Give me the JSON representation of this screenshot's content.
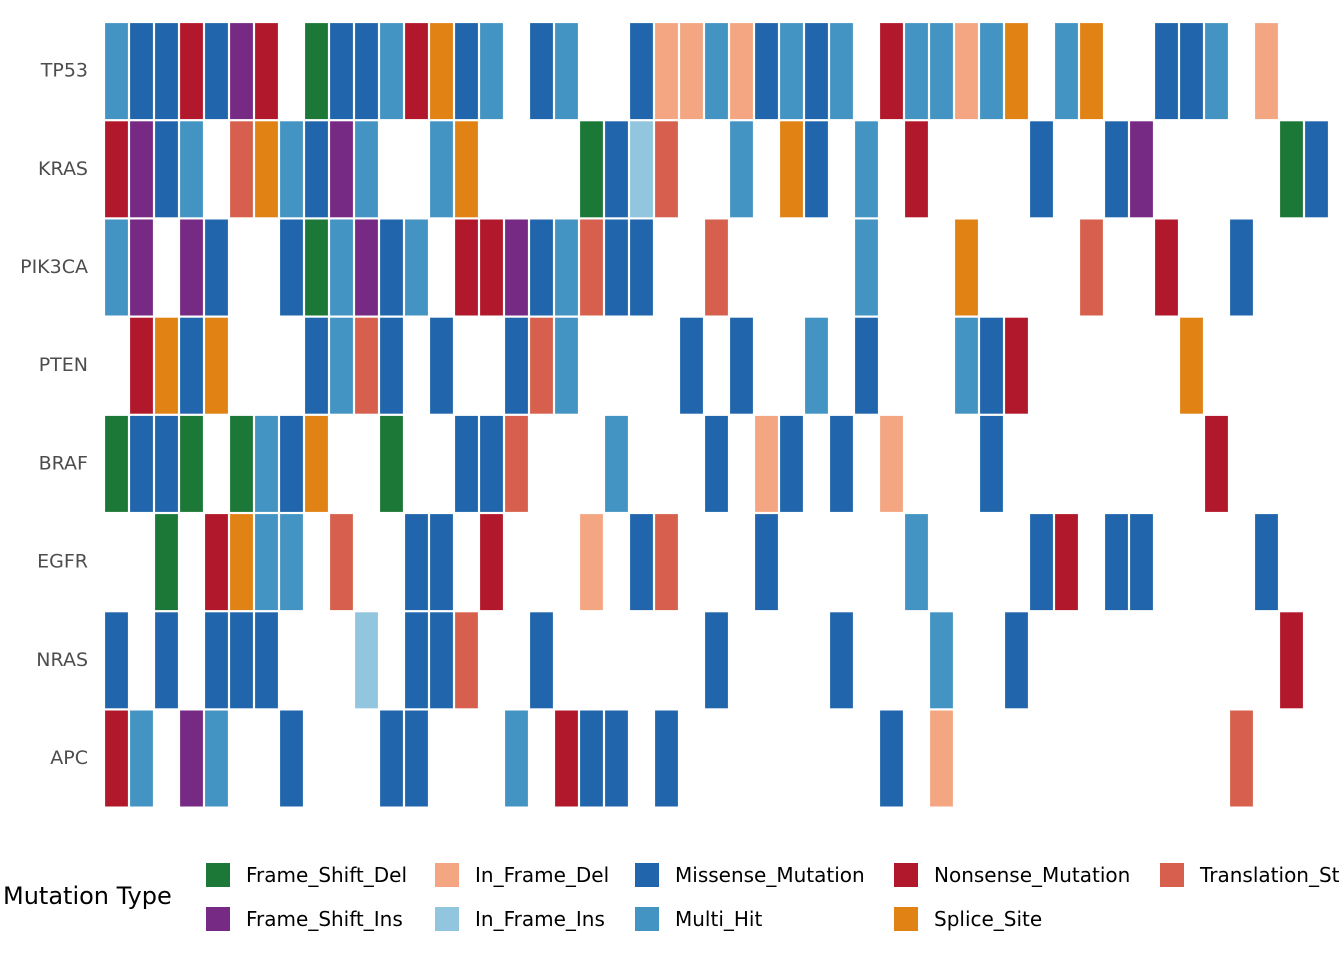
{
  "chart_data": {
    "type": "heatmap",
    "title": "",
    "xlabel": "",
    "ylabel": "",
    "genes": [
      "TP53",
      "KRAS",
      "PIK3CA",
      "PTEN",
      "BRAF",
      "EGFR",
      "NRAS",
      "APC"
    ],
    "n_samples": 49,
    "colors": {
      "Frame_Shift_Del": "#1b7837",
      "Frame_Shift_Ins": "#762a83",
      "In_Frame_Del": "#f4a582",
      "In_Frame_Ins": "#92c5de",
      "Missense_Mutation": "#2166ac",
      "Multi_Hit": "#4393c3",
      "Nonsense_Mutation": "#b2182b",
      "Splice_Site": "#e08214",
      "Translation_Start_Site": "#d6604d"
    },
    "matrix": {
      "TP53": [
        "Multi_Hit",
        "Missense_Mutation",
        "Missense_Mutation",
        "Nonsense_Mutation",
        "Missense_Mutation",
        "Frame_Shift_Ins",
        "Nonsense_Mutation",
        "",
        "Frame_Shift_Del",
        "Missense_Mutation",
        "Missense_Mutation",
        "Multi_Hit",
        "Nonsense_Mutation",
        "Splice_Site",
        "Missense_Mutation",
        "Multi_Hit",
        "",
        "Missense_Mutation",
        "Multi_Hit",
        "",
        "",
        "Missense_Mutation",
        "In_Frame_Del",
        "In_Frame_Del",
        "Multi_Hit",
        "In_Frame_Del",
        "Missense_Mutation",
        "Multi_Hit",
        "Missense_Mutation",
        "Multi_Hit",
        "",
        "Nonsense_Mutation",
        "Multi_Hit",
        "Multi_Hit",
        "In_Frame_Del",
        "Multi_Hit",
        "Splice_Site",
        "",
        "Multi_Hit",
        "Splice_Site",
        "",
        "",
        "Missense_Mutation",
        "Missense_Mutation",
        "Multi_Hit",
        "",
        "In_Frame_Del",
        "",
        ""
      ],
      "KRAS": [
        "Nonsense_Mutation",
        "Frame_Shift_Ins",
        "Missense_Mutation",
        "Multi_Hit",
        "",
        "Translation_Start_Site",
        "Splice_Site",
        "Multi_Hit",
        "Missense_Mutation",
        "Frame_Shift_Ins",
        "Multi_Hit",
        "",
        "",
        "Multi_Hit",
        "Splice_Site",
        "",
        "",
        "",
        "",
        "Frame_Shift_Del",
        "Missense_Mutation",
        "In_Frame_Ins",
        "Translation_Start_Site",
        "",
        "",
        "Multi_Hit",
        "",
        "Splice_Site",
        "Missense_Mutation",
        "",
        "Multi_Hit",
        "",
        "Nonsense_Mutation",
        "",
        "",
        "",
        "",
        "Missense_Mutation",
        "",
        "",
        "Missense_Mutation",
        "Frame_Shift_Ins",
        "",
        "",
        "",
        "",
        "",
        "Frame_Shift_Del",
        "Missense_Mutation"
      ],
      "PIK3CA": [
        "Multi_Hit",
        "Frame_Shift_Ins",
        "",
        "Frame_Shift_Ins",
        "Missense_Mutation",
        "",
        "",
        "Missense_Mutation",
        "Frame_Shift_Del",
        "Multi_Hit",
        "Frame_Shift_Ins",
        "Missense_Mutation",
        "Multi_Hit",
        "",
        "Nonsense_Mutation",
        "Nonsense_Mutation",
        "Frame_Shift_Ins",
        "Missense_Mutation",
        "Multi_Hit",
        "Translation_Start_Site",
        "Missense_Mutation",
        "Missense_Mutation",
        "",
        "",
        "Translation_Start_Site",
        "",
        "",
        "",
        "",
        "",
        "Multi_Hit",
        "",
        "",
        "",
        "Splice_Site",
        "",
        "",
        "",
        "",
        "Translation_Start_Site",
        "",
        "",
        "Nonsense_Mutation",
        "",
        "",
        "Missense_Mutation",
        "",
        "",
        ""
      ],
      "PTEN": [
        "",
        "Nonsense_Mutation",
        "Splice_Site",
        "Missense_Mutation",
        "Splice_Site",
        "",
        "",
        "",
        "Missense_Mutation",
        "Multi_Hit",
        "Translation_Start_Site",
        "Missense_Mutation",
        "",
        "Missense_Mutation",
        "",
        "",
        "Missense_Mutation",
        "Translation_Start_Site",
        "Multi_Hit",
        "",
        "",
        "",
        "",
        "Missense_Mutation",
        "",
        "Missense_Mutation",
        "",
        "",
        "Multi_Hit",
        "",
        "Missense_Mutation",
        "",
        "",
        "",
        "Multi_Hit",
        "Missense_Mutation",
        "Nonsense_Mutation",
        "",
        "",
        "",
        "",
        "",
        "",
        "Splice_Site",
        "",
        "",
        "",
        "",
        ""
      ],
      "BRAF": [
        "Frame_Shift_Del",
        "Missense_Mutation",
        "Missense_Mutation",
        "Frame_Shift_Del",
        "",
        "Frame_Shift_Del",
        "Multi_Hit",
        "Missense_Mutation",
        "Splice_Site",
        "",
        "",
        "Frame_Shift_Del",
        "",
        "",
        "Missense_Mutation",
        "Missense_Mutation",
        "Translation_Start_Site",
        "",
        "",
        "",
        "Multi_Hit",
        "",
        "",
        "",
        "Missense_Mutation",
        "",
        "In_Frame_Del",
        "Missense_Mutation",
        "",
        "Missense_Mutation",
        "",
        "In_Frame_Del",
        "",
        "",
        "",
        "Missense_Mutation",
        "",
        "",
        "",
        "",
        "",
        "",
        "",
        "",
        "Nonsense_Mutation",
        "",
        "",
        "",
        ""
      ],
      "EGFR": [
        "",
        "",
        "Frame_Shift_Del",
        "",
        "Nonsense_Mutation",
        "Splice_Site",
        "Multi_Hit",
        "Multi_Hit",
        "",
        "Translation_Start_Site",
        "",
        "",
        "Missense_Mutation",
        "Missense_Mutation",
        "",
        "Nonsense_Mutation",
        "",
        "",
        "",
        "In_Frame_Del",
        "",
        "Missense_Mutation",
        "Translation_Start_Site",
        "",
        "",
        "",
        "Missense_Mutation",
        "",
        "",
        "",
        "",
        "",
        "Multi_Hit",
        "",
        "",
        "",
        "",
        "Missense_Mutation",
        "Nonsense_Mutation",
        "",
        "Missense_Mutation",
        "Missense_Mutation",
        "",
        "",
        "",
        "",
        "Missense_Mutation",
        "",
        ""
      ],
      "NRAS": [
        "Missense_Mutation",
        "",
        "Missense_Mutation",
        "",
        "Missense_Mutation",
        "Missense_Mutation",
        "Missense_Mutation",
        "",
        "",
        "",
        "In_Frame_Ins",
        "",
        "Missense_Mutation",
        "Missense_Mutation",
        "Translation_Start_Site",
        "",
        "",
        "Missense_Mutation",
        "",
        "",
        "",
        "",
        "",
        "",
        "Missense_Mutation",
        "",
        "",
        "",
        "",
        "Missense_Mutation",
        "",
        "",
        "",
        "Multi_Hit",
        "",
        "",
        "Missense_Mutation",
        "",
        "",
        "",
        "",
        "",
        "",
        "",
        "",
        "",
        "",
        "Nonsense_Mutation",
        ""
      ],
      "APC": [
        "Nonsense_Mutation",
        "Multi_Hit",
        "",
        "Frame_Shift_Ins",
        "Multi_Hit",
        "",
        "",
        "Missense_Mutation",
        "",
        "",
        "",
        "Missense_Mutation",
        "Missense_Mutation",
        "",
        "",
        "",
        "Multi_Hit",
        "",
        "Nonsense_Mutation",
        "Missense_Mutation",
        "Missense_Mutation",
        "",
        "Missense_Mutation",
        "",
        "",
        "",
        "",
        "",
        "",
        "",
        "",
        "Missense_Mutation",
        "",
        "In_Frame_Del",
        "",
        "",
        "",
        "",
        "",
        "",
        "",
        "",
        "",
        "",
        "",
        "Translation_Start_Site",
        "",
        "",
        ""
      ]
    },
    "legend": {
      "title": "Mutation Type",
      "placement": "bottom",
      "items": [
        {
          "key": "Frame_Shift_Del",
          "label": "Frame_Shift_Del"
        },
        {
          "key": "Frame_Shift_Ins",
          "label": "Frame_Shift_Ins"
        },
        {
          "key": "In_Frame_Del",
          "label": "In_Frame_Del"
        },
        {
          "key": "In_Frame_Ins",
          "label": "In_Frame_Ins"
        },
        {
          "key": "Missense_Mutation",
          "label": "Missense_Mutation"
        },
        {
          "key": "Multi_Hit",
          "label": "Multi_Hit"
        },
        {
          "key": "Nonsense_Mutation",
          "label": "Nonsense_Mutation"
        },
        {
          "key": "Splice_Site",
          "label": "Splice_Site"
        },
        {
          "key": "Translation_Start_Site",
          "label": "Translation_St"
        }
      ]
    }
  }
}
